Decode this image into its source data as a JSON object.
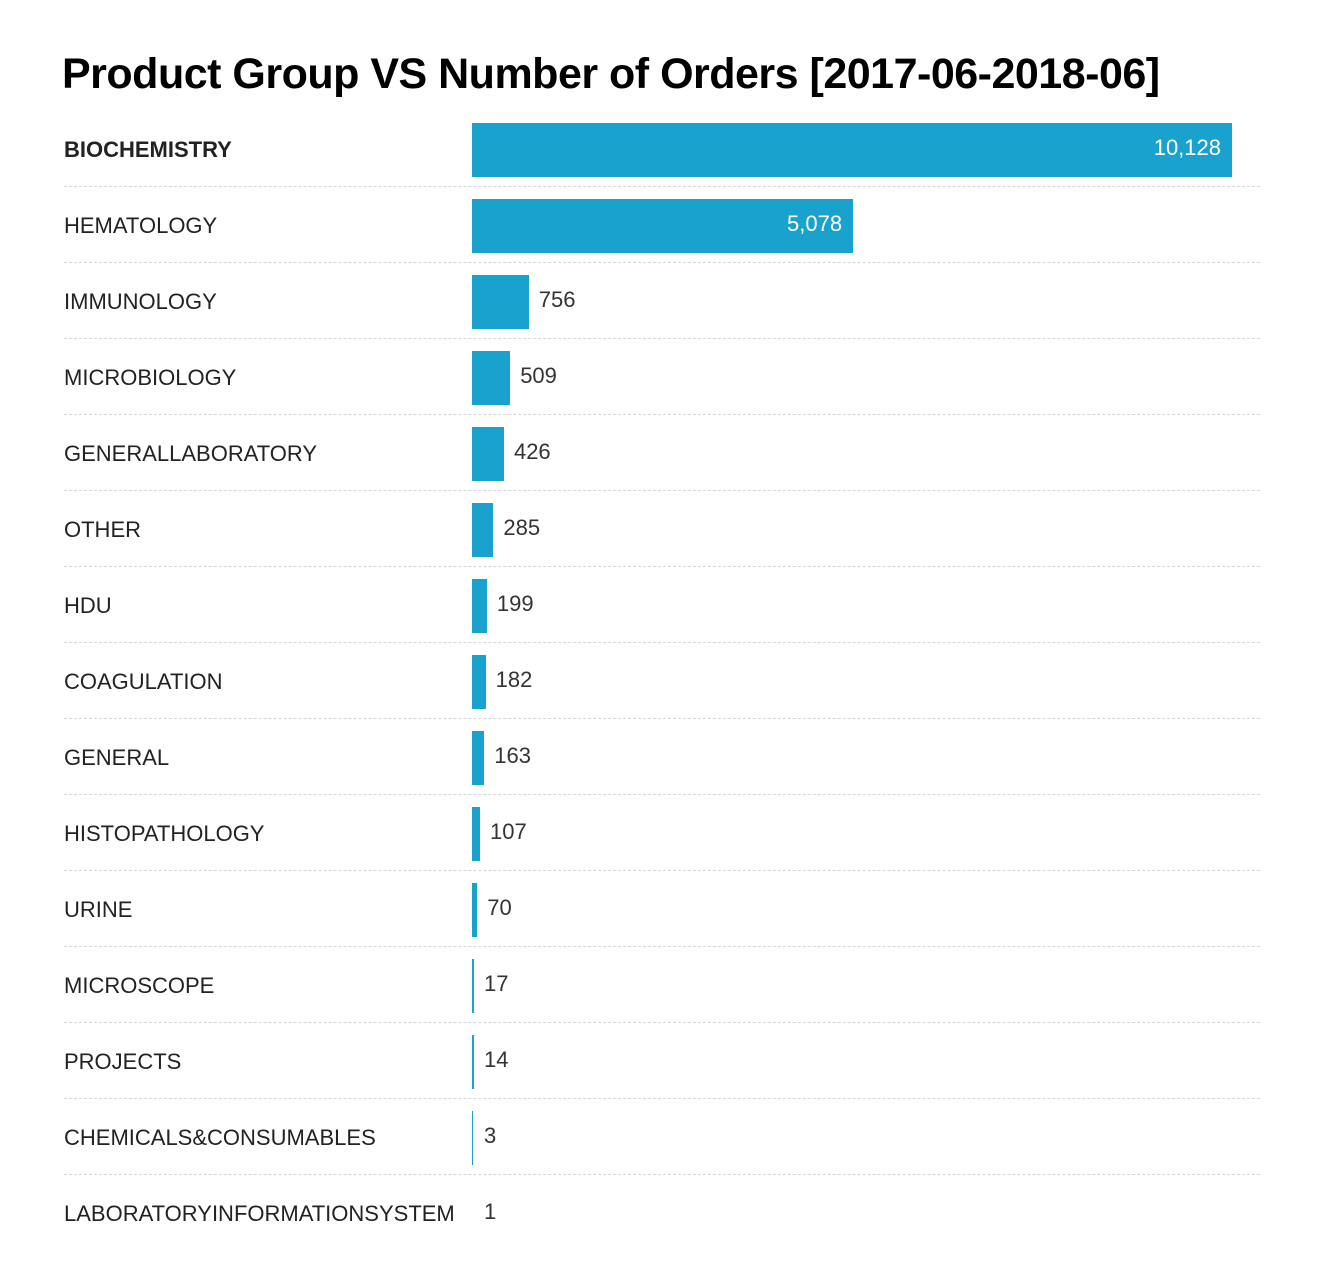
{
  "chart_data": {
    "type": "bar",
    "orientation": "horizontal",
    "title": "Product Group VS Number of Orders [2017-06-2018-06]",
    "categories": [
      "BIOCHEMISTRY",
      "HEMATOLOGY",
      "IMMUNOLOGY",
      "MICROBIOLOGY",
      "GENERALLABORATORY",
      "OTHER",
      "HDU",
      "COAGULATION",
      "GENERAL",
      "HISTOPATHOLOGY",
      "URINE",
      "MICROSCOPE",
      "PROJECTS",
      "CHEMICALS&CONSUMABLES",
      "LABORATORYINFORMATIONSYSTEM"
    ],
    "values": [
      10128,
      5078,
      756,
      509,
      426,
      285,
      199,
      182,
      163,
      107,
      70,
      17,
      14,
      3,
      1
    ],
    "value_labels": [
      "10,128",
      "5,078",
      "756",
      "509",
      "426",
      "285",
      "199",
      "182",
      "163",
      "107",
      "70",
      "17",
      "14",
      "3",
      "1"
    ],
    "highlighted_category": "BIOCHEMISTRY",
    "bar_color": "#1aa2cf",
    "grid": false,
    "xlabel": "",
    "ylabel": ""
  }
}
